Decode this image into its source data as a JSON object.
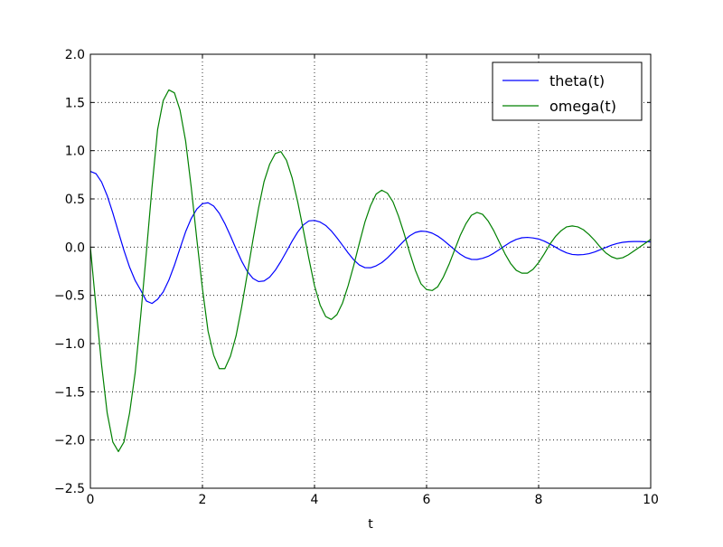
{
  "chart_data": {
    "type": "line",
    "title": "",
    "xlabel": "t",
    "ylabel": "",
    "xlim": [
      0,
      10
    ],
    "ylim": [
      -2.5,
      2.0
    ],
    "xticks": [
      0,
      2,
      4,
      6,
      8,
      10
    ],
    "xtick_labels": [
      "0",
      "2",
      "4",
      "6",
      "8",
      "10"
    ],
    "yticks": [
      -2.5,
      -2.0,
      -1.5,
      -1.0,
      -0.5,
      0.0,
      0.5,
      1.0,
      1.5,
      2.0
    ],
    "ytick_labels": [
      "−2.5",
      "−2.0",
      "−1.5",
      "−1.0",
      "−0.5",
      "0.0",
      "0.5",
      "1.0",
      "1.5",
      "2.0"
    ],
    "grid": true,
    "legend_position": "top-right",
    "series": [
      {
        "name": "theta(t)",
        "color": "#0000ff",
        "x": [
          0,
          0.1,
          0.2,
          0.3,
          0.4,
          0.5,
          0.6,
          0.7,
          0.8,
          0.9,
          1.0,
          1.1,
          1.2,
          1.3,
          1.4,
          1.5,
          1.6,
          1.7,
          1.8,
          1.9,
          2.0,
          2.1,
          2.2,
          2.3,
          2.4,
          2.5,
          2.6,
          2.7,
          2.8,
          2.9,
          3.0,
          3.1,
          3.2,
          3.3,
          3.4,
          3.5,
          3.6,
          3.7,
          3.8,
          3.9,
          4.0,
          4.1,
          4.2,
          4.3,
          4.4,
          4.5,
          4.6,
          4.7,
          4.8,
          4.9,
          5.0,
          5.1,
          5.2,
          5.3,
          5.4,
          5.5,
          5.6,
          5.7,
          5.8,
          5.9,
          6.0,
          6.1,
          6.2,
          6.3,
          6.4,
          6.5,
          6.6,
          6.7,
          6.8,
          6.9,
          7.0,
          7.1,
          7.2,
          7.3,
          7.4,
          7.5,
          7.6,
          7.7,
          7.8,
          7.9,
          8.0,
          8.1,
          8.2,
          8.3,
          8.4,
          8.5,
          8.6,
          8.7,
          8.8,
          8.9,
          9.0,
          9.1,
          9.2,
          9.3,
          9.4,
          9.5,
          9.6,
          9.7,
          9.8,
          9.9,
          10.0
        ],
        "values": [
          0.785,
          0.762,
          0.675,
          0.534,
          0.355,
          0.158,
          -0.035,
          -0.208,
          -0.347,
          -0.448,
          -0.559,
          -0.584,
          -0.541,
          -0.464,
          -0.343,
          -0.188,
          -0.013,
          0.16,
          0.297,
          0.395,
          0.45,
          0.46,
          0.426,
          0.351,
          0.244,
          0.117,
          -0.018,
          -0.145,
          -0.251,
          -0.324,
          -0.357,
          -0.351,
          -0.311,
          -0.24,
          -0.148,
          -0.045,
          0.061,
          0.156,
          0.23,
          0.272,
          0.277,
          0.26,
          0.225,
          0.168,
          0.097,
          0.019,
          -0.06,
          -0.132,
          -0.185,
          -0.213,
          -0.214,
          -0.194,
          -0.161,
          -0.112,
          -0.055,
          0.006,
          0.067,
          0.118,
          0.152,
          0.166,
          0.162,
          0.145,
          0.114,
          0.072,
          0.023,
          -0.027,
          -0.073,
          -0.108,
          -0.127,
          -0.128,
          -0.116,
          -0.095,
          -0.063,
          -0.025,
          0.015,
          0.052,
          0.08,
          0.097,
          0.101,
          0.095,
          0.084,
          0.062,
          0.033,
          0.0,
          -0.033,
          -0.06,
          -0.076,
          -0.08,
          -0.077,
          -0.068,
          -0.05,
          -0.027,
          -0.003,
          0.02,
          0.038,
          0.05,
          0.056,
          0.058,
          0.058,
          0.056,
          0.055
        ]
      },
      {
        "name": "omega(t)",
        "color": "#008000",
        "x": [
          0,
          0.1,
          0.2,
          0.3,
          0.4,
          0.5,
          0.6,
          0.7,
          0.8,
          0.9,
          1.0,
          1.1,
          1.2,
          1.3,
          1.4,
          1.5,
          1.6,
          1.7,
          1.8,
          1.9,
          2.0,
          2.1,
          2.2,
          2.3,
          2.4,
          2.5,
          2.6,
          2.7,
          2.8,
          2.9,
          3.0,
          3.1,
          3.2,
          3.3,
          3.4,
          3.5,
          3.6,
          3.7,
          3.8,
          3.9,
          4.0,
          4.1,
          4.2,
          4.3,
          4.4,
          4.5,
          4.6,
          4.7,
          4.8,
          4.9,
          5.0,
          5.1,
          5.2,
          5.3,
          5.4,
          5.5,
          5.6,
          5.7,
          5.8,
          5.9,
          6.0,
          6.1,
          6.2,
          6.3,
          6.4,
          6.5,
          6.6,
          6.7,
          6.8,
          6.9,
          7.0,
          7.1,
          7.2,
          7.3,
          7.4,
          7.5,
          7.6,
          7.7,
          7.8,
          7.9,
          8.0,
          8.1,
          8.2,
          8.3,
          8.4,
          8.5,
          8.6,
          8.7,
          8.8,
          8.9,
          9.0,
          9.1,
          9.2,
          9.3,
          9.4,
          9.5,
          9.6,
          9.7,
          9.8,
          9.9,
          10.0
        ],
        "values": [
          0.0,
          -0.62,
          -1.22,
          -1.72,
          -2.02,
          -2.12,
          -2.02,
          -1.72,
          -1.3,
          -0.7,
          -0.05,
          0.62,
          1.22,
          1.52,
          1.63,
          1.6,
          1.42,
          1.1,
          0.62,
          0.08,
          -0.43,
          -0.87,
          -1.12,
          -1.26,
          -1.26,
          -1.13,
          -0.92,
          -0.62,
          -0.28,
          0.07,
          0.4,
          0.68,
          0.86,
          0.97,
          0.99,
          0.9,
          0.72,
          0.47,
          0.18,
          -0.12,
          -0.4,
          -0.6,
          -0.72,
          -0.75,
          -0.7,
          -0.58,
          -0.4,
          -0.19,
          0.04,
          0.26,
          0.43,
          0.55,
          0.59,
          0.56,
          0.47,
          0.32,
          0.14,
          -0.06,
          -0.24,
          -0.38,
          -0.44,
          -0.45,
          -0.41,
          -0.31,
          -0.18,
          -0.03,
          0.12,
          0.24,
          0.33,
          0.36,
          0.34,
          0.27,
          0.17,
          0.05,
          -0.07,
          -0.17,
          -0.24,
          -0.27,
          -0.27,
          -0.23,
          -0.16,
          -0.07,
          0.03,
          0.11,
          0.17,
          0.21,
          0.22,
          0.21,
          0.18,
          0.13,
          0.07,
          0.0,
          -0.06,
          -0.1,
          -0.12,
          -0.11,
          -0.08,
          -0.04,
          0.0,
          0.04,
          0.08
        ]
      }
    ]
  }
}
